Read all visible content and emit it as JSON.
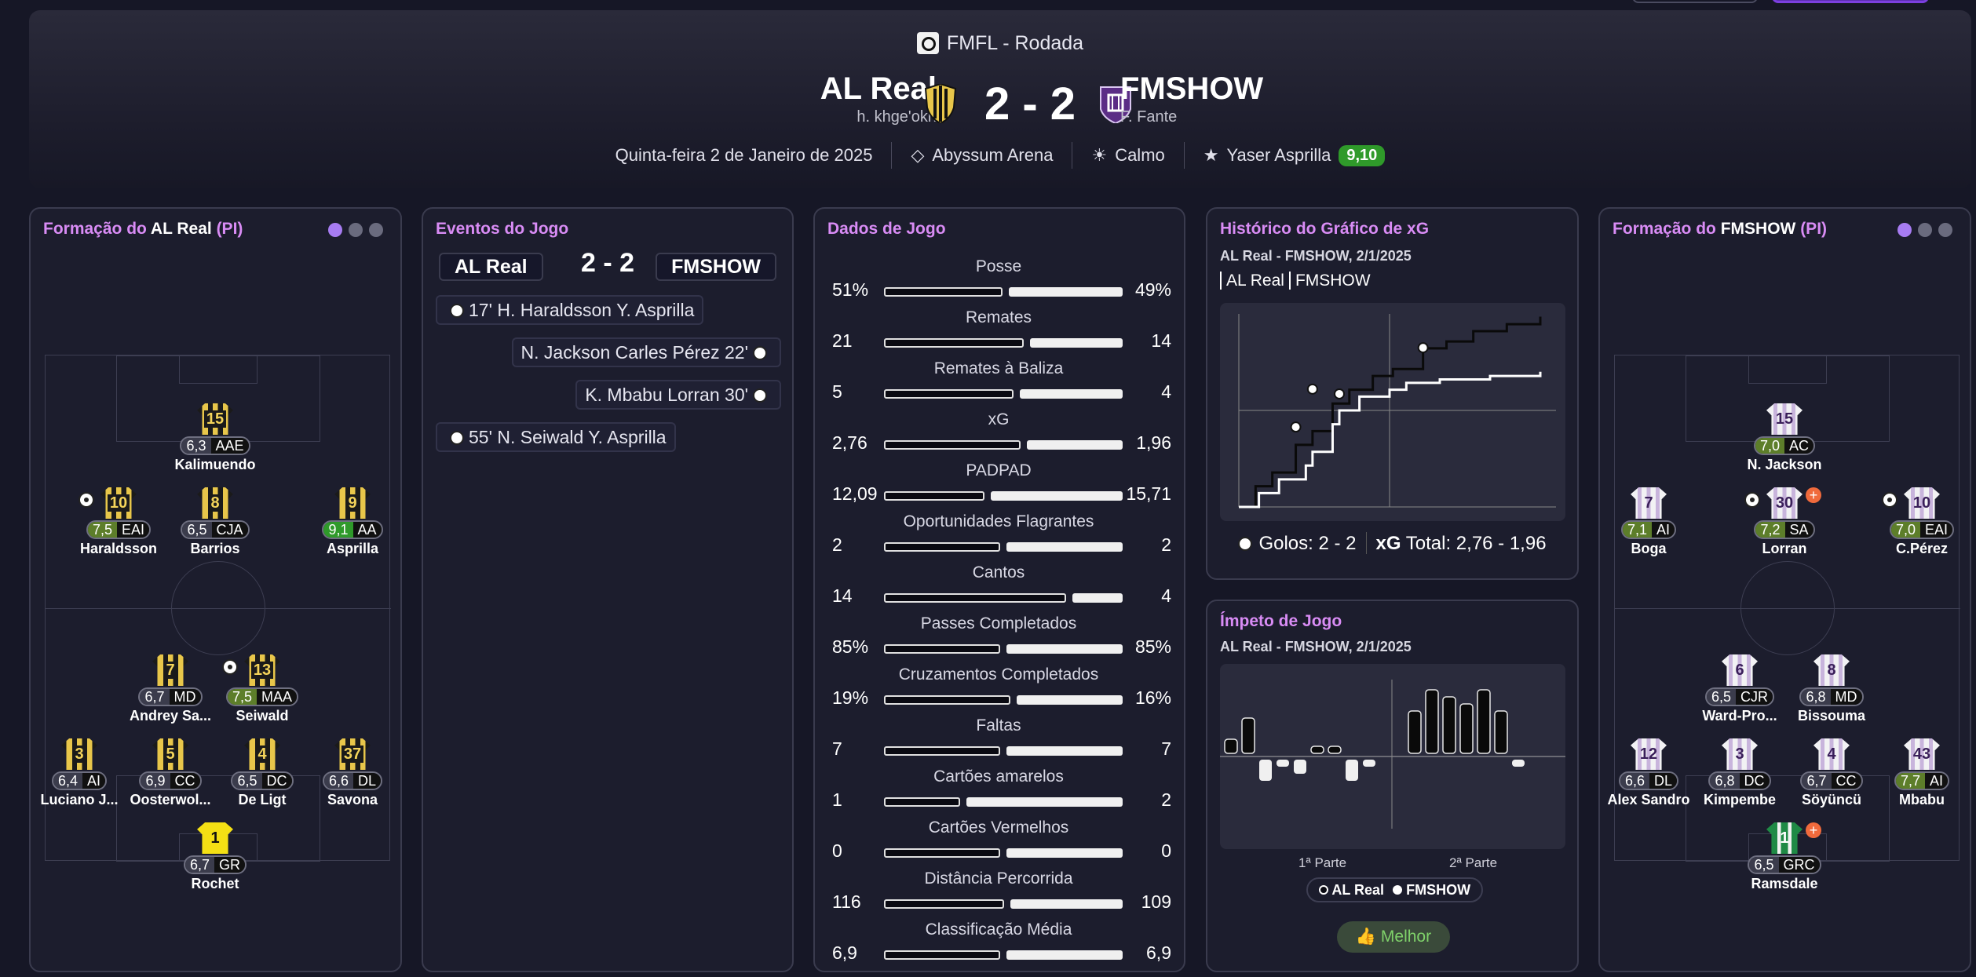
{
  "header": {
    "competition": "FMFL - Rodada",
    "home": {
      "name": "AL Real",
      "manager": "h. khge'okh"
    },
    "away": {
      "name": "FMSHOW",
      "manager": "F. Fante"
    },
    "score": "2 - 2",
    "date": "Quinta-feira 2 de Janeiro de 2025",
    "stadium": "Abyssum Arena",
    "weather": "Calmo",
    "motm": "Yaser Asprilla",
    "motm_rating": "9,10",
    "colors": {
      "accent": "#d98cf5",
      "rating_green": "#2f9a2a"
    }
  },
  "home_lineup": {
    "title_prefix": "Formação do ",
    "team": "AL Real",
    "suffix": " (PI)",
    "players": [
      {
        "num": "15",
        "rating": "6,3",
        "pos": "AAE",
        "name": "Kalimuendo"
      },
      {
        "num": "10",
        "rating": "7,5",
        "pos": "EAI",
        "name": "Haraldsson"
      },
      {
        "num": "8",
        "rating": "6,5",
        "pos": "CJA",
        "name": "Barrios"
      },
      {
        "num": "9",
        "rating": "9,1",
        "pos": "AA",
        "name": "Asprilla"
      },
      {
        "num": "7",
        "rating": "6,7",
        "pos": "MD",
        "name": "Andrey Sa..."
      },
      {
        "num": "13",
        "rating": "7,5",
        "pos": "MAA",
        "name": "Seiwald"
      },
      {
        "num": "3",
        "rating": "6,4",
        "pos": "AI",
        "name": "Luciano J..."
      },
      {
        "num": "5",
        "rating": "6,9",
        "pos": "CC",
        "name": "Oosterwol..."
      },
      {
        "num": "4",
        "rating": "6,5",
        "pos": "DC",
        "name": "De Ligt"
      },
      {
        "num": "37",
        "rating": "6,6",
        "pos": "DL",
        "name": "Savona"
      },
      {
        "num": "1",
        "rating": "6,7",
        "pos": "GR",
        "name": "Rochet"
      }
    ]
  },
  "away_lineup": {
    "title_prefix": "Formação do ",
    "team": "FMSHOW",
    "suffix": " (PI)",
    "players": [
      {
        "num": "15",
        "rating": "7,0",
        "pos": "AC",
        "name": "N. Jackson"
      },
      {
        "num": "7",
        "rating": "7,1",
        "pos": "AI",
        "name": "Boga"
      },
      {
        "num": "30",
        "rating": "7,2",
        "pos": "SA",
        "name": "Lorran"
      },
      {
        "num": "10",
        "rating": "7,0",
        "pos": "EAI",
        "name": "C.Pérez"
      },
      {
        "num": "6",
        "rating": "6,5",
        "pos": "CJR",
        "name": "Ward-Pro..."
      },
      {
        "num": "8",
        "rating": "6,8",
        "pos": "MD",
        "name": "Bissouma"
      },
      {
        "num": "12",
        "rating": "6,6",
        "pos": "DL",
        "name": "Alex Sandro"
      },
      {
        "num": "3",
        "rating": "6,8",
        "pos": "DC",
        "name": "Kimpembe"
      },
      {
        "num": "4",
        "rating": "6,7",
        "pos": "CC",
        "name": "Söyüncü"
      },
      {
        "num": "43",
        "rating": "7,7",
        "pos": "AI",
        "name": "Mbabu"
      },
      {
        "num": "1",
        "rating": "6,5",
        "pos": "GRC",
        "name": "Ramsdale"
      }
    ]
  },
  "events": {
    "title": "Eventos do Jogo",
    "home": "AL Real",
    "away": "FMSHOW",
    "score": "2 - 2",
    "items": [
      {
        "text": "17' H. Haraldsson Y. Asprilla",
        "side": "home"
      },
      {
        "text": "N. Jackson Carles Pérez 22'",
        "side": "away"
      },
      {
        "text": "K. Mbabu Lorran 30'",
        "side": "away"
      },
      {
        "text": "55' N. Seiwald Y. Asprilla",
        "side": "home"
      }
    ]
  },
  "stats": {
    "title": "Dados de Jogo",
    "rows": [
      {
        "label": "Posse",
        "home": "51%",
        "away": "49%",
        "h": 51,
        "a": 49
      },
      {
        "label": "Remates",
        "home": "21",
        "away": "14",
        "h": 21,
        "a": 14
      },
      {
        "label": "Remates à Baliza",
        "home": "5",
        "away": "4",
        "h": 5,
        "a": 4
      },
      {
        "label": "xG",
        "home": "2,76",
        "away": "1,96",
        "h": 2.76,
        "a": 1.96
      },
      {
        "label": "PADPAD",
        "home": "12,09",
        "away": "15,71",
        "h": 12.09,
        "a": 15.71
      },
      {
        "label": "Oportunidades Flagrantes",
        "home": "2",
        "away": "2",
        "h": 2,
        "a": 2
      },
      {
        "label": "Cantos",
        "home": "14",
        "away": "4",
        "h": 14,
        "a": 4
      },
      {
        "label": "Passes Completados",
        "home": "85%",
        "away": "85%",
        "h": 85,
        "a": 85
      },
      {
        "label": "Cruzamentos Completados",
        "home": "19%",
        "away": "16%",
        "h": 19,
        "a": 16
      },
      {
        "label": "Faltas",
        "home": "7",
        "away": "7",
        "h": 7,
        "a": 7
      },
      {
        "label": "Cartões amarelos",
        "home": "1",
        "away": "2",
        "h": 1,
        "a": 2
      },
      {
        "label": "Cartões Vermelhos",
        "home": "0",
        "away": "0",
        "h": 0,
        "a": 0
      },
      {
        "label": "Distância Percorrida",
        "home": "116",
        "away": "109",
        "h": 116,
        "a": 109
      },
      {
        "label": "Classificação Média",
        "home": "6,9",
        "away": "6,9",
        "h": 6.9,
        "a": 6.9
      }
    ]
  },
  "xg_panel": {
    "title": "Histórico do Gráfico de xG",
    "subtitle": "AL Real - FMSHOW, 2/1/2025",
    "legend_home": "AL Real",
    "legend_away": "FMSHOW",
    "goals_text": "Golos: 2 - 2",
    "xg_label": "xG",
    "xg_total": "Total: 2,76 - 1,96"
  },
  "momentum_panel": {
    "title": "Ímpeto de Jogo",
    "subtitle": "AL Real - FMSHOW, 2/1/2025",
    "half1": "1ª Parte",
    "half2": "2ª Parte",
    "legend_home": "AL Real",
    "legend_away": "FMSHOW",
    "button": "Melhor"
  },
  "chart_data": [
    {
      "type": "line",
      "title": "Histórico do Gráfico de xG",
      "series": [
        {
          "name": "AL Real",
          "x": [
            0,
            5,
            10,
            17,
            22,
            28,
            33,
            40,
            46,
            55,
            62,
            70,
            80,
            90
          ],
          "y": [
            0,
            0.3,
            0.5,
            0.9,
            1.1,
            1.5,
            1.7,
            1.9,
            2.0,
            2.3,
            2.4,
            2.55,
            2.65,
            2.76
          ]
        },
        {
          "name": "FMSHOW",
          "x": [
            0,
            6,
            12,
            20,
            22,
            28,
            30,
            36,
            45,
            50,
            60,
            75,
            90
          ],
          "y": [
            0,
            0.2,
            0.4,
            0.6,
            0.8,
            1.2,
            1.4,
            1.6,
            1.7,
            1.8,
            1.85,
            1.9,
            1.96
          ]
        }
      ]
    },
    {
      "type": "bar",
      "title": "Ímpeto de Jogo",
      "series": [
        {
          "name": "AL Real",
          "values": [
            2,
            5,
            0,
            0,
            0,
            1,
            1,
            0,
            0,
            0,
            6,
            9,
            8,
            7,
            9,
            6,
            0,
            0
          ]
        },
        {
          "name": "FMSHOW",
          "values": [
            0,
            0,
            3,
            1,
            2,
            0,
            0,
            3,
            1,
            0,
            0,
            0,
            0,
            0,
            0,
            0,
            1,
            0
          ]
        }
      ]
    }
  ]
}
